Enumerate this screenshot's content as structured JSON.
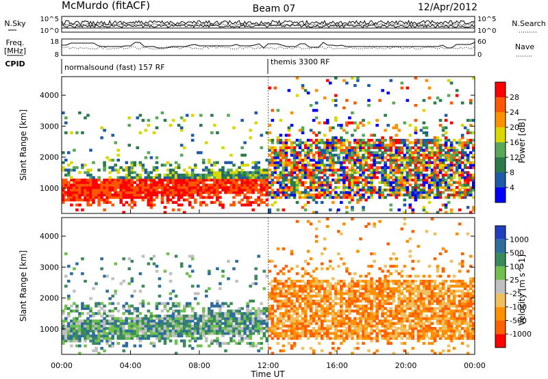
{
  "header": {
    "title": "McMurdo (fitACF)",
    "beam": "Beam 07",
    "date": "12/Apr/2012"
  },
  "noise_panel": {
    "left_label": "N.Sky",
    "right_label": "N.Search",
    "left_ticks": [
      "10^5",
      "10^0"
    ],
    "right_ticks": [
      "10^5",
      "10^0"
    ]
  },
  "freq_panel": {
    "left_label_1": "Freq.",
    "left_label_2": "[MHz]",
    "right_label": "Nave",
    "left_ticks": [
      "18",
      "8"
    ],
    "right_ticks": [
      "60",
      "0"
    ]
  },
  "cpid_panel": {
    "label": "CPID",
    "segments": [
      {
        "name": "normalsound (fast) 157 RF",
        "start_hour": 0,
        "end_hour": 12
      },
      {
        "name": "themis 3300 RF",
        "start_hour": 12,
        "end_hour": 24
      }
    ]
  },
  "x_axis": {
    "label": "Time UT",
    "ticks": [
      "00:00",
      "04:00",
      "08:00",
      "12:00",
      "16:00",
      "20:00",
      "00:00"
    ]
  },
  "chart_data": [
    {
      "type": "heatmap",
      "title": "",
      "xlabel": "Time UT",
      "ylabel": "Slant Range [km]",
      "xlim": [
        0,
        24
      ],
      "ylim": [
        180,
        4600
      ],
      "y_ticks": [
        "1000",
        "2000",
        "3000",
        "4000"
      ],
      "colorbar": {
        "label": "Power [dB]",
        "ticks": [
          "4",
          "8",
          "12",
          "16",
          "20",
          "24",
          "28"
        ],
        "colors": [
          "#0000ff",
          "#1e5aa8",
          "#2a7a4a",
          "#58a858",
          "#d8d800",
          "#ff9000",
          "#ff5800",
          "#ff0000"
        ]
      }
    },
    {
      "type": "heatmap",
      "title": "",
      "xlabel": "Time UT",
      "ylabel": "Slant Range [km]",
      "xlim": [
        0,
        24
      ],
      "ylim": [
        180,
        4600
      ],
      "y_ticks": [
        "1000",
        "2000",
        "3000",
        "4000"
      ],
      "colorbar": {
        "label": "Velocity [m s^-1]",
        "ticks": [
          "1000",
          "500",
          "100",
          "25",
          "-25",
          "-100",
          "-500",
          "-1000"
        ],
        "colors": [
          "#2040c0",
          "#2e6e9e",
          "#3a8a5a",
          "#70c050",
          "#c0c0c0",
          "#f0c060",
          "#ff9000",
          "#ff6000",
          "#ff0000"
        ]
      }
    }
  ]
}
